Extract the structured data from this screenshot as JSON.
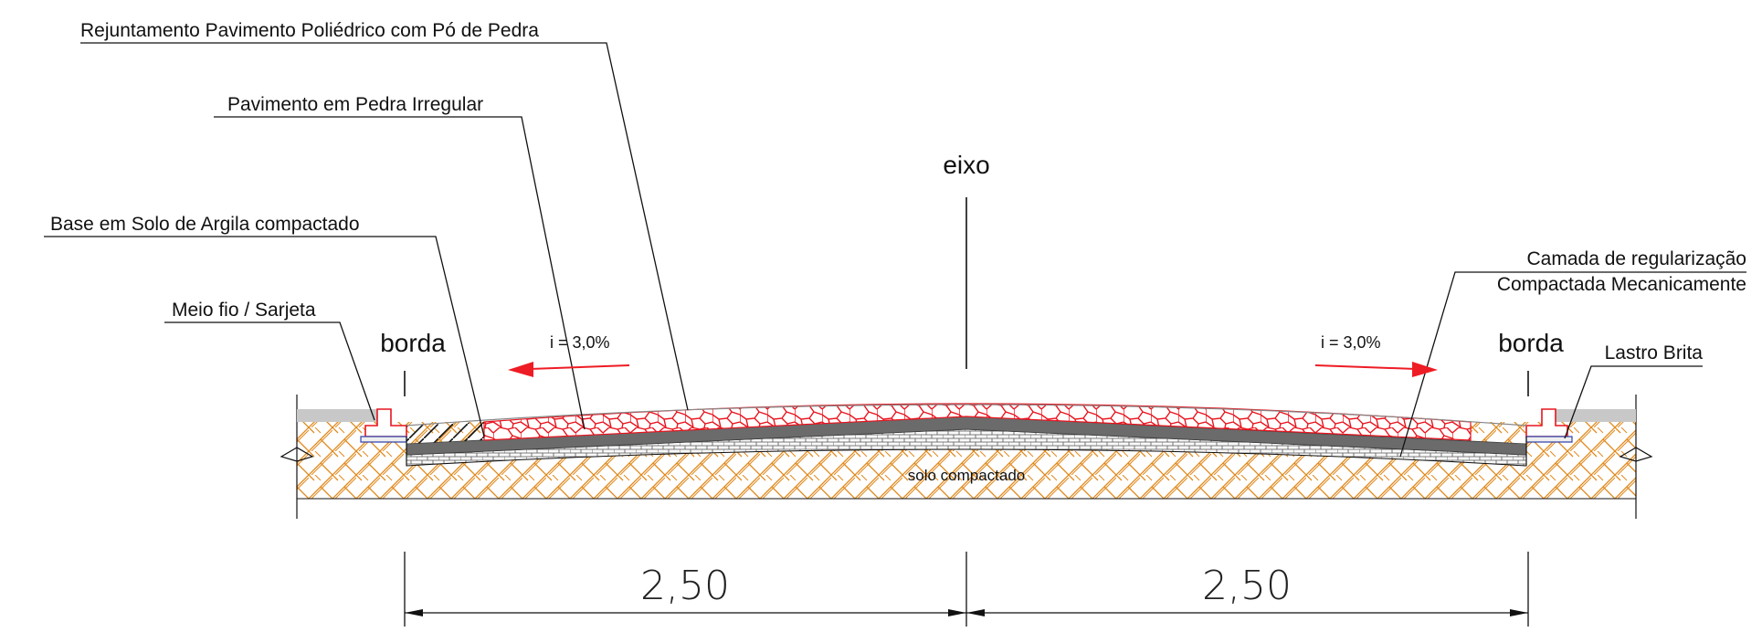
{
  "labels": {
    "rejuntamento": "Rejuntamento Pavimento Poliédrico com Pó de Pedra",
    "pavimento": "Pavimento em Pedra Irregular",
    "base": "Base em Solo de Argila compactado",
    "meio_fio": "Meio fio / Sarjeta",
    "eixo": "eixo",
    "borda_left": "borda",
    "borda_right": "borda",
    "slope_left": "i = 3,0%",
    "slope_right": "i = 3,0%",
    "camada_line1": "Camada de regularização",
    "camada_line2": "Compactada Mecanicamente",
    "lastro": "Lastro Brita",
    "solo": "solo compactado"
  },
  "dimensions": {
    "left": "2,50",
    "right": "2,50"
  },
  "colors": {
    "paver_outline": "#e8141e",
    "arrow": "#ee1c24",
    "soil_hatch": "#e08a1e",
    "base_layer": "#6b6b6b",
    "curb_fill": "#c8c8c8",
    "line": "#111111"
  }
}
